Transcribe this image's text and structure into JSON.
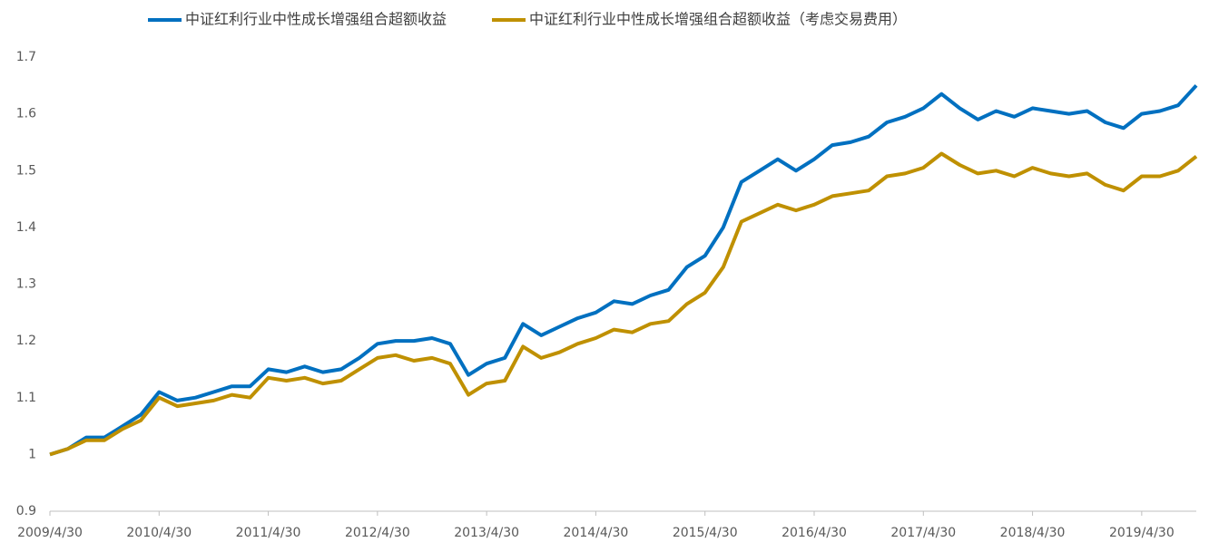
{
  "chart_data": {
    "type": "line",
    "categories": [
      "2009/4/30",
      null,
      null,
      null,
      null,
      null,
      "2010/4/30",
      null,
      null,
      null,
      null,
      null,
      "2011/4/30",
      null,
      null,
      null,
      null,
      null,
      "2012/4/30",
      null,
      null,
      null,
      null,
      null,
      "2013/4/30",
      null,
      null,
      null,
      null,
      null,
      "2014/4/30",
      null,
      null,
      null,
      null,
      null,
      "2015/4/30",
      null,
      null,
      null,
      null,
      null,
      "2016/4/30",
      null,
      null,
      null,
      null,
      null,
      "2017/4/30",
      null,
      null,
      null,
      null,
      null,
      "2018/4/30",
      null,
      null,
      null,
      null,
      null,
      "2019/4/30",
      null,
      null,
      null
    ],
    "series": [
      {
        "name": "中证红利行业中性成长增强组合超额收益",
        "color": "#0070c0",
        "values": [
          1.0,
          1.01,
          1.03,
          1.03,
          1.05,
          1.07,
          1.11,
          1.095,
          1.1,
          1.11,
          1.12,
          1.12,
          1.15,
          1.145,
          1.155,
          1.145,
          1.15,
          1.17,
          1.195,
          1.2,
          1.2,
          1.205,
          1.195,
          1.14,
          1.16,
          1.17,
          1.23,
          1.21,
          1.225,
          1.24,
          1.25,
          1.27,
          1.265,
          1.28,
          1.29,
          1.33,
          1.35,
          1.4,
          1.48,
          1.5,
          1.52,
          1.5,
          1.52,
          1.545,
          1.55,
          1.56,
          1.585,
          1.595,
          1.61,
          1.635,
          1.61,
          1.59,
          1.605,
          1.595,
          1.61,
          1.605,
          1.6,
          1.605,
          1.585,
          1.575,
          1.6,
          1.605,
          1.615,
          1.65
        ]
      },
      {
        "name": "中证红利行业中性成长增强组合超额收益（考虑交易费用）",
        "color": "#bf9000",
        "values": [
          1.0,
          1.01,
          1.025,
          1.025,
          1.045,
          1.06,
          1.1,
          1.085,
          1.09,
          1.095,
          1.105,
          1.1,
          1.135,
          1.13,
          1.135,
          1.125,
          1.13,
          1.15,
          1.17,
          1.175,
          1.165,
          1.17,
          1.16,
          1.105,
          1.125,
          1.13,
          1.19,
          1.17,
          1.18,
          1.195,
          1.205,
          1.22,
          1.215,
          1.23,
          1.235,
          1.265,
          1.285,
          1.33,
          1.41,
          1.425,
          1.44,
          1.43,
          1.44,
          1.455,
          1.46,
          1.465,
          1.49,
          1.495,
          1.505,
          1.53,
          1.51,
          1.495,
          1.5,
          1.49,
          1.505,
          1.495,
          1.49,
          1.495,
          1.475,
          1.465,
          1.49,
          1.49,
          1.5,
          1.525
        ]
      }
    ],
    "ylim": [
      0.9,
      1.7
    ],
    "yticks": [
      0.9,
      1,
      1.1,
      1.2,
      1.3,
      1.4,
      1.5,
      1.6,
      1.7
    ],
    "grid": false
  }
}
